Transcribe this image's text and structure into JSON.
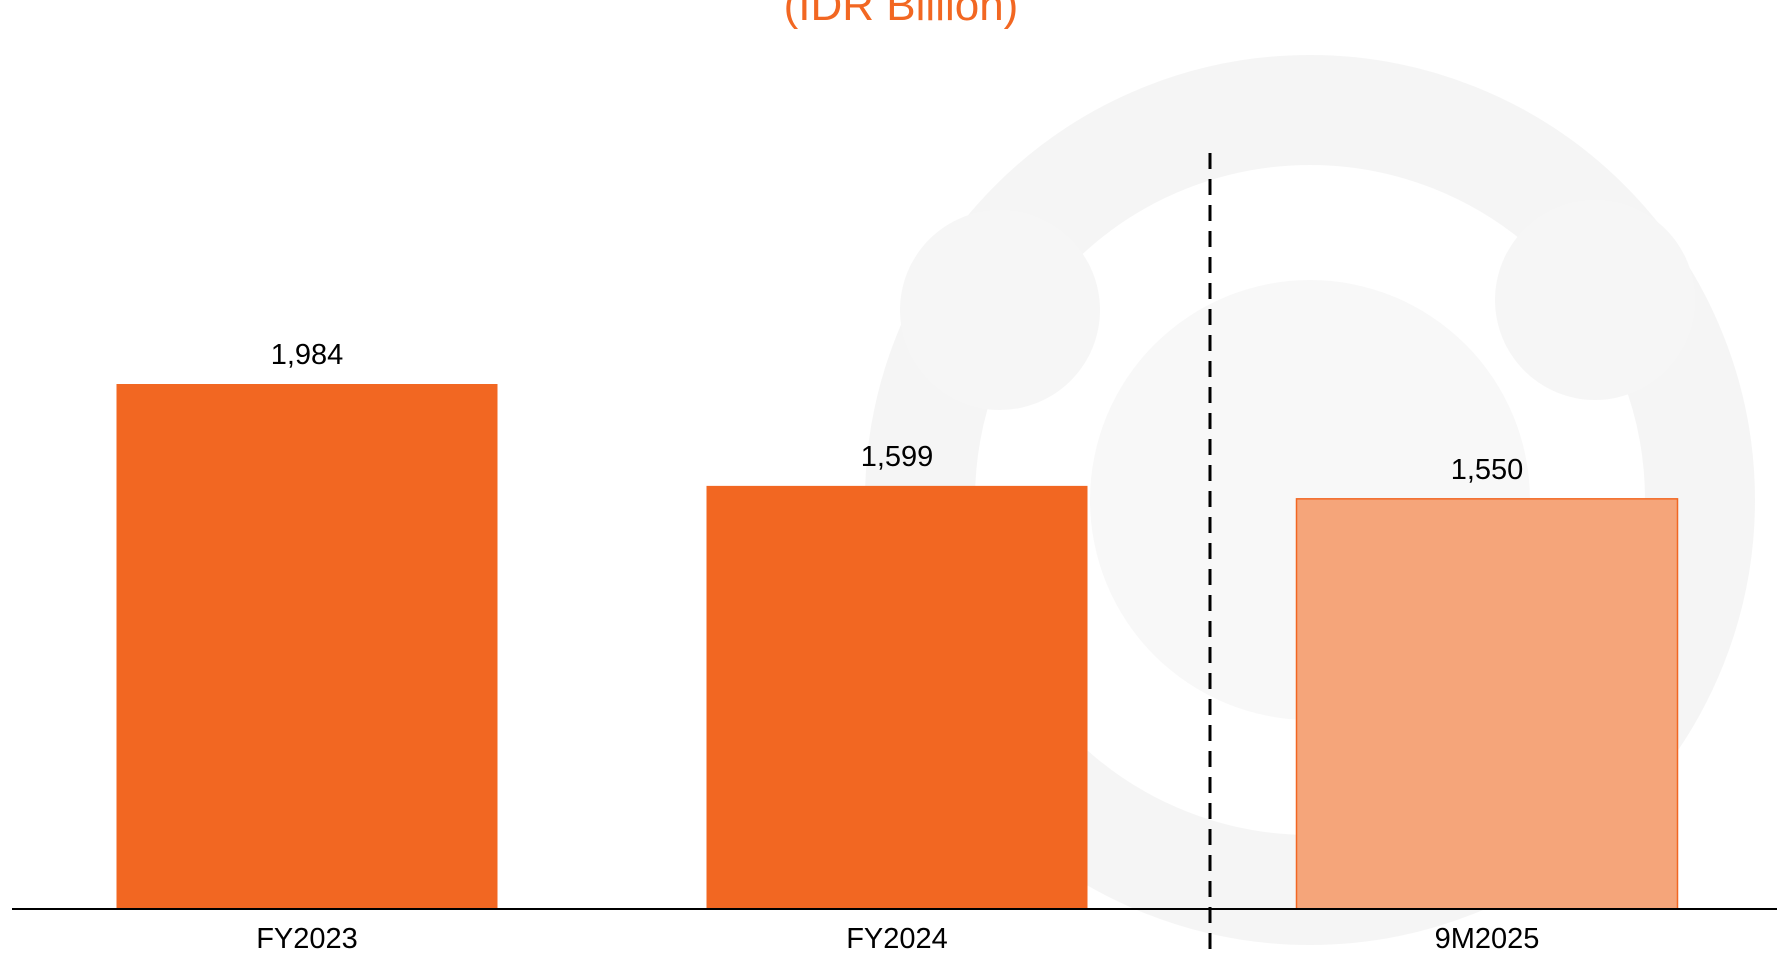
{
  "chart_data": {
    "type": "bar",
    "title": "(IDR Billion)",
    "categories": [
      "FY2023",
      "FY2024",
      "9M2025"
    ],
    "values": [
      1984,
      1599,
      1550
    ],
    "value_labels": [
      "1,984",
      "1,599",
      "1,550"
    ],
    "colors": [
      "#f26722",
      "#f26722",
      "#f5a57a"
    ]
  }
}
